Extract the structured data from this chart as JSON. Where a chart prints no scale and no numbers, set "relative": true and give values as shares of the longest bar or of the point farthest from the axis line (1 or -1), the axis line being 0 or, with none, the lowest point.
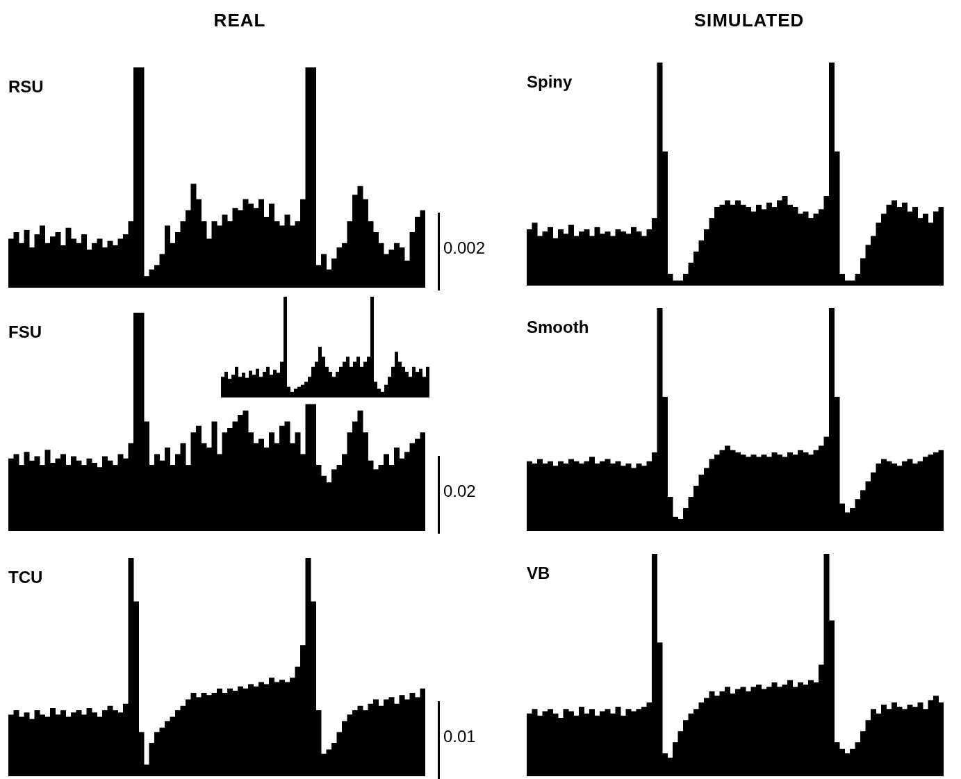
{
  "chart_data": [
    {
      "type": "bar",
      "subtitle": "REAL",
      "title": "RSU",
      "relative": true,
      "color": "#000000",
      "annotations": [
        "0.002"
      ],
      "categories": [
        null,
        null,
        null,
        null,
        null,
        null,
        null,
        null,
        null,
        null,
        null,
        null,
        null,
        null,
        null,
        null,
        null,
        null,
        null,
        null,
        null,
        null,
        null,
        null,
        null,
        null,
        null,
        null,
        null,
        null,
        null,
        null,
        null,
        null,
        null,
        null,
        null,
        null,
        null,
        null,
        null,
        null,
        null,
        null,
        null,
        null,
        null,
        null,
        null,
        null,
        null,
        null,
        null,
        null,
        null,
        null,
        null,
        null,
        null,
        null,
        null,
        null,
        null,
        null,
        null,
        null,
        null,
        null,
        null,
        null,
        null,
        null,
        null,
        null,
        null,
        null,
        null,
        null,
        null,
        null
      ],
      "values": [
        0.22,
        0.25,
        0.2,
        0.26,
        0.18,
        0.24,
        0.28,
        0.2,
        0.23,
        0.25,
        0.19,
        0.27,
        0.22,
        0.2,
        0.24,
        0.17,
        0.2,
        0.22,
        0.18,
        0.21,
        0.19,
        0.22,
        0.24,
        0.3,
        1,
        1,
        0.05,
        0.08,
        0.1,
        0.15,
        0.28,
        0.2,
        0.25,
        0.3,
        0.35,
        0.47,
        0.4,
        0.3,
        0.22,
        0.3,
        0.28,
        0.33,
        0.3,
        0.36,
        0.35,
        0.4,
        0.38,
        0.36,
        0.4,
        0.32,
        0.38,
        0.3,
        0.28,
        0.33,
        0.28,
        0.3,
        0.4,
        1,
        1,
        0.1,
        0.15,
        0.08,
        0.13,
        0.18,
        0.2,
        0.3,
        0.42,
        0.46,
        0.4,
        0.3,
        0.25,
        0.2,
        0.15,
        0.17,
        0.2,
        0.18,
        0.12,
        0.25,
        0.32,
        0.35
      ]
    },
    {
      "type": "bar",
      "title": "FSU",
      "relative": true,
      "color": "#000000",
      "annotations": [
        "0.02"
      ],
      "categories": [
        null,
        null,
        null,
        null,
        null,
        null,
        null,
        null,
        null,
        null,
        null,
        null,
        null,
        null,
        null,
        null,
        null,
        null,
        null,
        null,
        null,
        null,
        null,
        null,
        null,
        null,
        null,
        null,
        null,
        null,
        null,
        null,
        null,
        null,
        null,
        null,
        null,
        null,
        null,
        null,
        null,
        null,
        null,
        null,
        null,
        null,
        null,
        null,
        null,
        null,
        null,
        null,
        null,
        null,
        null,
        null,
        null,
        null,
        null,
        null,
        null,
        null,
        null,
        null,
        null,
        null,
        null,
        null,
        null,
        null,
        null,
        null,
        null,
        null,
        null,
        null,
        null,
        null,
        null,
        null
      ],
      "values": [
        0.33,
        0.35,
        0.3,
        0.36,
        0.32,
        0.34,
        0.3,
        0.37,
        0.31,
        0.33,
        0.35,
        0.3,
        0.34,
        0.32,
        0.3,
        0.33,
        0.31,
        0.29,
        0.34,
        0.32,
        0.3,
        0.35,
        0.33,
        0.4,
        1,
        1,
        0.5,
        0.3,
        0.35,
        0.32,
        0.38,
        0.3,
        0.35,
        0.4,
        0.3,
        0.45,
        0.48,
        0.4,
        0.38,
        0.5,
        0.35,
        0.45,
        0.47,
        0.5,
        0.53,
        0.55,
        0.45,
        0.4,
        0.42,
        0.38,
        0.45,
        0.4,
        0.48,
        0.5,
        0.4,
        0.45,
        0.35,
        0.58,
        0.58,
        0.3,
        0.25,
        0.22,
        0.28,
        0.3,
        0.35,
        0.45,
        0.5,
        0.55,
        0.45,
        0.32,
        0.28,
        0.3,
        0.35,
        0.3,
        0.38,
        0.33,
        0.36,
        0.4,
        0.42,
        0.45
      ]
    },
    {
      "type": "bar",
      "relative": true,
      "color": "#000000",
      "categories": [
        null,
        null,
        null,
        null,
        null,
        null,
        null,
        null,
        null,
        null,
        null,
        null,
        null,
        null,
        null,
        null,
        null,
        null,
        null,
        null,
        null,
        null,
        null,
        null,
        null,
        null,
        null,
        null,
        null,
        null,
        null,
        null,
        null,
        null,
        null,
        null,
        null,
        null,
        null,
        null,
        null,
        null,
        null,
        null,
        null,
        null,
        null,
        null,
        null,
        null,
        null,
        null,
        null,
        null,
        null,
        null,
        null,
        null,
        null,
        null
      ],
      "values": [
        0.2,
        0.25,
        0.18,
        0.22,
        0.3,
        0.2,
        0.24,
        0.19,
        0.26,
        0.22,
        0.28,
        0.2,
        0.25,
        0.3,
        0.22,
        0.27,
        0.24,
        0.35,
        1,
        0.1,
        0.05,
        0.08,
        0.1,
        0.12,
        0.15,
        0.2,
        0.3,
        0.35,
        0.5,
        0.4,
        0.3,
        0.25,
        0.2,
        0.25,
        0.3,
        0.35,
        0.4,
        0.3,
        0.35,
        0.4,
        0.3,
        0.35,
        0.4,
        1,
        0.15,
        0.08,
        0.05,
        0.12,
        0.2,
        0.3,
        0.45,
        0.35,
        0.3,
        0.25,
        0.2,
        0.3,
        0.25,
        0.28,
        0.2,
        0.3
      ]
    },
    {
      "type": "bar",
      "title": "TCU",
      "relative": true,
      "color": "#000000",
      "annotations": [
        "0.01"
      ],
      "categories": [
        null,
        null,
        null,
        null,
        null,
        null,
        null,
        null,
        null,
        null,
        null,
        null,
        null,
        null,
        null,
        null,
        null,
        null,
        null,
        null,
        null,
        null,
        null,
        null,
        null,
        null,
        null,
        null,
        null,
        null,
        null,
        null,
        null,
        null,
        null,
        null,
        null,
        null,
        null,
        null,
        null,
        null,
        null,
        null,
        null,
        null,
        null,
        null,
        null,
        null,
        null,
        null,
        null,
        null,
        null,
        null,
        null,
        null,
        null,
        null,
        null,
        null,
        null,
        null,
        null,
        null,
        null,
        null,
        null,
        null,
        null,
        null,
        null,
        null,
        null,
        null,
        null,
        null,
        null,
        null
      ],
      "values": [
        0.28,
        0.3,
        0.27,
        0.29,
        0.26,
        0.3,
        0.28,
        0.27,
        0.31,
        0.28,
        0.3,
        0.27,
        0.29,
        0.3,
        0.28,
        0.31,
        0.29,
        0.27,
        0.3,
        0.32,
        0.3,
        0.29,
        0.33,
        1,
        0.8,
        0.2,
        0.05,
        0.15,
        0.2,
        0.22,
        0.25,
        0.27,
        0.3,
        0.32,
        0.35,
        0.38,
        0.36,
        0.38,
        0.37,
        0.38,
        0.4,
        0.38,
        0.4,
        0.39,
        0.41,
        0.4,
        0.42,
        0.41,
        0.43,
        0.42,
        0.45,
        0.43,
        0.44,
        0.43,
        0.45,
        0.5,
        0.6,
        1,
        0.8,
        0.3,
        0.1,
        0.12,
        0.15,
        0.2,
        0.25,
        0.28,
        0.3,
        0.32,
        0.3,
        0.33,
        0.35,
        0.32,
        0.35,
        0.36,
        0.33,
        0.37,
        0.35,
        0.38,
        0.36,
        0.4
      ]
    },
    {
      "type": "bar",
      "subtitle": "SIMULATED",
      "title": "Spiny",
      "relative": true,
      "color": "#000000",
      "categories": [
        null,
        null,
        null,
        null,
        null,
        null,
        null,
        null,
        null,
        null,
        null,
        null,
        null,
        null,
        null,
        null,
        null,
        null,
        null,
        null,
        null,
        null,
        null,
        null,
        null,
        null,
        null,
        null,
        null,
        null,
        null,
        null,
        null,
        null,
        null,
        null,
        null,
        null,
        null,
        null,
        null,
        null,
        null,
        null,
        null,
        null,
        null,
        null,
        null,
        null,
        null,
        null,
        null,
        null,
        null,
        null,
        null,
        null,
        null,
        null,
        null,
        null,
        null,
        null,
        null,
        null,
        null,
        null,
        null,
        null,
        null,
        null,
        null,
        null,
        null,
        null,
        null,
        null,
        null,
        null
      ],
      "values": [
        0.25,
        0.28,
        0.22,
        0.24,
        0.26,
        0.21,
        0.25,
        0.23,
        0.27,
        0.22,
        0.24,
        0.25,
        0.22,
        0.26,
        0.23,
        0.24,
        0.22,
        0.25,
        0.24,
        0.23,
        0.26,
        0.24,
        0.22,
        0.25,
        0.3,
        1,
        0.6,
        0.05,
        0.02,
        0.02,
        0.05,
        0.1,
        0.15,
        0.2,
        0.25,
        0.3,
        0.35,
        0.36,
        0.38,
        0.36,
        0.38,
        0.36,
        0.35,
        0.33,
        0.36,
        0.34,
        0.37,
        0.35,
        0.38,
        0.4,
        0.36,
        0.35,
        0.32,
        0.33,
        0.3,
        0.32,
        0.34,
        0.4,
        1,
        0.6,
        0.05,
        0.02,
        0.02,
        0.05,
        0.12,
        0.18,
        0.22,
        0.28,
        0.32,
        0.36,
        0.38,
        0.35,
        0.37,
        0.33,
        0.35,
        0.3,
        0.32,
        0.28,
        0.33,
        0.35
      ]
    },
    {
      "type": "bar",
      "title": "Smooth",
      "relative": true,
      "color": "#000000",
      "categories": [
        null,
        null,
        null,
        null,
        null,
        null,
        null,
        null,
        null,
        null,
        null,
        null,
        null,
        null,
        null,
        null,
        null,
        null,
        null,
        null,
        null,
        null,
        null,
        null,
        null,
        null,
        null,
        null,
        null,
        null,
        null,
        null,
        null,
        null,
        null,
        null,
        null,
        null,
        null,
        null,
        null,
        null,
        null,
        null,
        null,
        null,
        null,
        null,
        null,
        null,
        null,
        null,
        null,
        null,
        null,
        null,
        null,
        null,
        null,
        null,
        null,
        null,
        null,
        null,
        null,
        null,
        null,
        null,
        null,
        null,
        null,
        null,
        null,
        null,
        null,
        null,
        null,
        null,
        null,
        null
      ],
      "values": [
        0.31,
        0.3,
        0.32,
        0.3,
        0.31,
        0.29,
        0.31,
        0.3,
        0.32,
        0.31,
        0.3,
        0.31,
        0.33,
        0.3,
        0.31,
        0.32,
        0.3,
        0.31,
        0.29,
        0.3,
        0.28,
        0.3,
        0.29,
        0.31,
        0.35,
        1,
        0.6,
        0.15,
        0.06,
        0.05,
        0.1,
        0.15,
        0.2,
        0.25,
        0.28,
        0.32,
        0.34,
        0.36,
        0.38,
        0.36,
        0.35,
        0.34,
        0.33,
        0.34,
        0.33,
        0.34,
        0.33,
        0.35,
        0.34,
        0.33,
        0.35,
        0.34,
        0.36,
        0.35,
        0.34,
        0.36,
        0.38,
        0.42,
        1,
        0.6,
        0.12,
        0.08,
        0.1,
        0.14,
        0.18,
        0.22,
        0.26,
        0.3,
        0.32,
        0.31,
        0.3,
        0.29,
        0.31,
        0.32,
        0.3,
        0.31,
        0.33,
        0.34,
        0.35,
        0.36
      ]
    },
    {
      "type": "bar",
      "title": "VB",
      "relative": true,
      "color": "#000000",
      "categories": [
        null,
        null,
        null,
        null,
        null,
        null,
        null,
        null,
        null,
        null,
        null,
        null,
        null,
        null,
        null,
        null,
        null,
        null,
        null,
        null,
        null,
        null,
        null,
        null,
        null,
        null,
        null,
        null,
        null,
        null,
        null,
        null,
        null,
        null,
        null,
        null,
        null,
        null,
        null,
        null,
        null,
        null,
        null,
        null,
        null,
        null,
        null,
        null,
        null,
        null,
        null,
        null,
        null,
        null,
        null,
        null,
        null,
        null,
        null,
        null,
        null,
        null,
        null,
        null,
        null,
        null,
        null,
        null,
        null,
        null,
        null,
        null,
        null,
        null,
        null,
        null,
        null,
        null,
        null,
        null
      ],
      "values": [
        0.28,
        0.3,
        0.27,
        0.29,
        0.3,
        0.28,
        0.26,
        0.3,
        0.29,
        0.27,
        0.31,
        0.28,
        0.3,
        0.27,
        0.29,
        0.3,
        0.28,
        0.31,
        0.27,
        0.3,
        0.29,
        0.3,
        0.31,
        0.33,
        1,
        0.6,
        0.1,
        0.08,
        0.15,
        0.2,
        0.25,
        0.28,
        0.3,
        0.33,
        0.35,
        0.38,
        0.36,
        0.38,
        0.4,
        0.37,
        0.39,
        0.4,
        0.38,
        0.4,
        0.41,
        0.39,
        0.4,
        0.42,
        0.4,
        0.41,
        0.43,
        0.4,
        0.42,
        0.41,
        0.43,
        0.42,
        0.5,
        1,
        0.7,
        0.15,
        0.12,
        0.1,
        0.12,
        0.15,
        0.2,
        0.25,
        0.3,
        0.28,
        0.32,
        0.3,
        0.33,
        0.31,
        0.3,
        0.32,
        0.31,
        0.33,
        0.3,
        0.34,
        0.36,
        0.33
      ]
    }
  ]
}
